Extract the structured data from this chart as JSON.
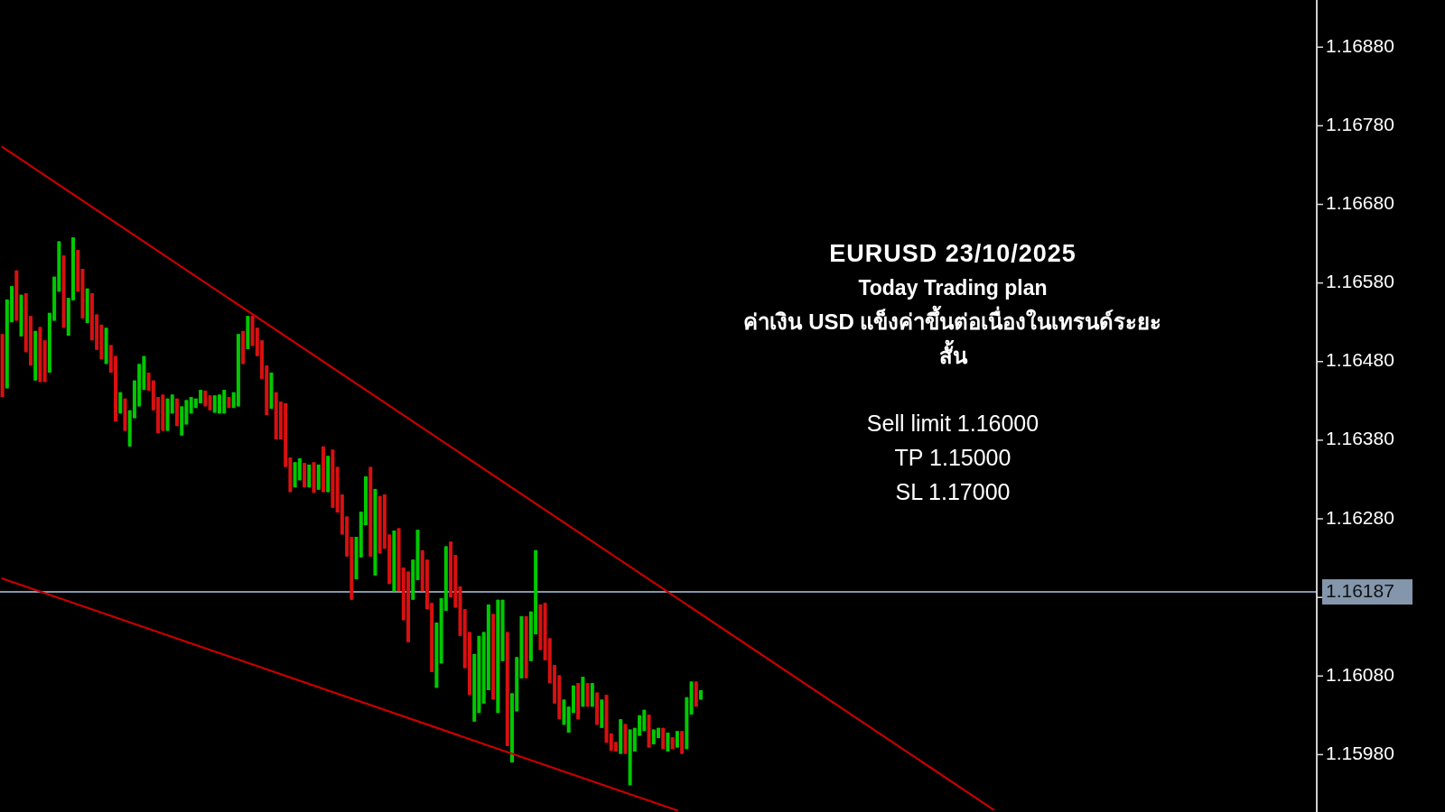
{
  "chart_data": {
    "type": "candlestick",
    "title": "EURUSD 23/10/2025",
    "subtitle": "Today Trading plan",
    "annotations": [
      "ค่าเงิน USD แข็งค่าขึ้นต่อเนื่องในเทรนด์ระยะสั้น",
      "Sell limit 1.16000",
      "TP 1.15000",
      "SL 1.17000"
    ],
    "colors": [
      "#d81010",
      "#00c800",
      "#00c800",
      "#d81010",
      "#00c800",
      "#d81010",
      "#d81010",
      "#00c800",
      "#d81010",
      "#d81010",
      "#00c800",
      "#00c800",
      "#00c800",
      "#d81010",
      "#00c800",
      "#00c800",
      "#d81010",
      "#d81010",
      "#00c800",
      "#d81010",
      "#d81010",
      "#d81010",
      "#00c800",
      "#d81010",
      "#d81010",
      "#00c800",
      "#d81010",
      "#00c800",
      "#00c800",
      "#00c800",
      "#00c800",
      "#d81010",
      "#d81010",
      "#d81010",
      "#d81010",
      "#00c800",
      "#00c800",
      "#d81010",
      "#00c800",
      "#00c800",
      "#00c800",
      "#00c800",
      "#00c800",
      "#d81010",
      "#d81010",
      "#00c800",
      "#00c800",
      "#00c800",
      "#d81010",
      "#00c800",
      "#00c800",
      "#d81010",
      "#00c800",
      "#d81010",
      "#d81010",
      "#d81010",
      "#d81010",
      "#00c800",
      "#d81010",
      "#d81010",
      "#d81010",
      "#d81010",
      "#00c800",
      "#00c800",
      "#d81010",
      "#00c800",
      "#d81010",
      "#00c800",
      "#d81010",
      "#00c800",
      "#d81010",
      "#d81010",
      "#d81010",
      "#d81010",
      "#d81010",
      "#00c800",
      "#00c800",
      "#00c800",
      "#d81010",
      "#00c800",
      "#d81010",
      "#d81010",
      "#d81010",
      "#00c800",
      "#d81010",
      "#d81010",
      "#d81010",
      "#00c800",
      "#00c800",
      "#d81010",
      "#d81010",
      "#d81010",
      "#00c800",
      "#00c800",
      "#00c800",
      "#d81010",
      "#d81010",
      "#d81010",
      "#d81010",
      "#d81010",
      "#00c800",
      "#00c800",
      "#00c800",
      "#00c800",
      "#d81010",
      "#00c800",
      "#00c800",
      "#d81010",
      "#00c800",
      "#00c800",
      "#00c800",
      "#d81010",
      "#00c800",
      "#00c800",
      "#d81010",
      "#d81010",
      "#d81010",
      "#d81010",
      "#d81010",
      "#00c800",
      "#00c800",
      "#00c800",
      "#d81010",
      "#00c800",
      "#d81010",
      "#00c800",
      "#d81010",
      "#00c800",
      "#d81010",
      "#d81010",
      "#d81010",
      "#00c800",
      "#d81010",
      "#00c800",
      "#00c800",
      "#00c800",
      "#00c800",
      "#d81010",
      "#00c800",
      "#00c800",
      "#d81010",
      "#00c800",
      "#d81010",
      "#00c800",
      "#d81010",
      "#00c800",
      "#00c800",
      "#d81010",
      "#00c800",
      null,
      null,
      null,
      null,
      null,
      null,
      null,
      null,
      null,
      null,
      null,
      null,
      null,
      null,
      null,
      null,
      null,
      null,
      null,
      null,
      null,
      null,
      null,
      null,
      null,
      null,
      null,
      null,
      null,
      null,
      null,
      null,
      null,
      null,
      null,
      null,
      null,
      null,
      null,
      null,
      null,
      null,
      null,
      null,
      null,
      null,
      null,
      null,
      null,
      null,
      null,
      null,
      null,
      null,
      null,
      null,
      null,
      null,
      null,
      null,
      null,
      null,
      null,
      null,
      null,
      null,
      null,
      null,
      null,
      null,
      null,
      null,
      null,
      null,
      null,
      null,
      null,
      null,
      null,
      null,
      null,
      null,
      null,
      null,
      null,
      null,
      null,
      null,
      null,
      null,
      null,
      null,
      null,
      null,
      null,
      null,
      null,
      null,
      null,
      null,
      null,
      null,
      null,
      null,
      null,
      null,
      null,
      null,
      null,
      null,
      null,
      null,
      null,
      null,
      null,
      null,
      null,
      null,
      null,
      null,
      null,
      null,
      null,
      null,
      null,
      null,
      null,
      null,
      null,
      null
    ],
    "ylim": [
      1.15907,
      1.1694
    ],
    "yticks": [
      {
        "value": 1.1598,
        "label": "1.15980"
      },
      {
        "value": 1.1608,
        "label": "1.16080"
      },
      {
        "value": 1.1618,
        "label": null
      },
      {
        "value": 1.1628,
        "label": "1.16280"
      },
      {
        "value": 1.1638,
        "label": "1.16380"
      },
      {
        "value": 1.1648,
        "label": "1.16480"
      },
      {
        "value": 1.1658,
        "label": "1.16580"
      },
      {
        "value": 1.1668,
        "label": "1.16680"
      },
      {
        "value": 1.1678,
        "label": "1.16780"
      },
      {
        "value": 1.1688,
        "label": "1.16880"
      }
    ],
    "tick_labels": "y",
    "ref_lines": [
      {
        "axis": "y",
        "value": 1.16187,
        "label": "1.16187",
        "color": "#8496ab"
      }
    ],
    "categories": [
      null,
      null,
      null,
      null,
      null,
      null,
      null,
      null,
      null,
      null,
      null,
      null,
      null,
      null,
      null,
      null,
      null,
      null,
      null,
      null,
      null,
      null,
      null,
      null,
      null,
      null,
      null,
      null,
      null,
      null,
      null,
      null,
      null,
      null,
      null,
      null,
      null,
      null,
      null,
      null,
      null,
      null,
      null,
      null,
      null,
      null,
      null,
      null,
      null,
      null,
      null,
      null,
      null,
      null,
      null,
      null,
      null,
      null,
      null,
      null,
      null,
      null,
      null,
      null,
      null,
      null,
      null,
      null,
      null,
      null,
      null,
      null,
      null,
      null,
      null,
      null,
      null,
      null,
      null,
      null,
      null,
      null,
      null,
      null,
      null,
      null,
      null,
      null,
      null,
      null,
      null,
      null,
      null,
      null,
      null,
      null,
      null,
      null,
      null,
      null,
      null,
      null,
      null,
      null,
      null,
      null,
      null,
      null,
      null,
      null,
      null,
      null,
      null,
      null,
      null,
      null,
      null,
      null,
      null,
      null,
      null,
      null,
      null,
      null,
      null,
      null,
      null,
      null,
      null,
      null,
      null,
      null,
      null,
      null,
      null,
      null,
      null,
      null,
      null,
      null,
      null,
      null,
      null,
      null,
      null,
      null,
      null,
      null,
      null,
      null,
      null,
      null,
      null,
      null,
      null,
      null,
      null,
      null,
      null,
      null,
      null,
      null,
      null,
      null,
      null,
      null,
      null,
      null,
      null,
      null,
      null,
      null,
      null,
      null,
      null,
      null,
      null,
      null,
      null,
      null,
      null,
      null,
      null,
      null,
      null,
      null,
      null,
      null,
      null,
      null,
      null,
      null,
      null,
      null,
      null,
      null,
      null,
      null,
      null,
      null,
      null,
      null,
      null,
      null,
      null,
      null,
      null,
      null,
      null,
      null,
      null,
      null,
      null,
      null,
      null,
      null,
      null,
      null,
      null,
      null,
      null,
      null,
      null,
      null,
      null,
      null,
      null,
      null,
      null,
      null,
      null,
      null,
      null,
      null,
      null,
      null,
      null,
      null,
      null,
      null,
      null,
      null,
      null,
      null,
      null,
      null,
      null,
      null,
      null,
      null,
      null,
      null,
      null,
      null,
      null,
      null,
      null,
      null,
      null,
      null,
      null,
      null,
      null,
      null,
      null,
      null,
      null,
      null,
      null,
      null,
      null,
      null,
      null,
      null,
      null,
      null,
      null,
      null,
      null
    ],
    "ohlc": [
      [
        1.16515,
        1.16515,
        1.16435,
        1.16435
      ],
      [
        1.16446,
        1.16559,
        1.16446,
        1.16559
      ],
      [
        1.1653,
        1.16576,
        1.1653,
        1.16576
      ],
      [
        1.16596,
        1.16596,
        1.16532,
        1.16532
      ],
      [
        1.16512,
        1.16565,
        1.16512,
        1.16565
      ],
      [
        1.16567,
        1.16567,
        1.16492,
        1.16492
      ],
      [
        1.16538,
        1.16538,
        1.16475,
        1.16475
      ],
      [
        1.16456,
        1.16519,
        1.16456,
        1.16519
      ],
      [
        1.16524,
        1.16524,
        1.16454,
        1.16454
      ],
      [
        1.16507,
        1.16507,
        1.16454,
        1.16454
      ],
      [
        1.16466,
        1.16542,
        1.16466,
        1.16542
      ],
      [
        1.16532,
        1.16588,
        1.16532,
        1.16588
      ],
      [
        1.16569,
        1.16633,
        1.16569,
        1.16633
      ],
      [
        1.16615,
        1.16615,
        1.16523,
        1.16523
      ],
      [
        1.16513,
        1.16561,
        1.16513,
        1.16561
      ],
      [
        1.16558,
        1.16638,
        1.16558,
        1.16638
      ],
      [
        1.16622,
        1.16622,
        1.16569,
        1.16569
      ],
      [
        1.16598,
        1.16598,
        1.16535,
        1.16535
      ],
      [
        1.16529,
        1.16573,
        1.16529,
        1.16573
      ],
      [
        1.16567,
        1.16567,
        1.16507,
        1.16507
      ],
      [
        1.1654,
        1.1654,
        1.16495,
        1.16495
      ],
      [
        1.16527,
        1.16527,
        1.16483,
        1.16483
      ],
      [
        1.16477,
        1.16523,
        1.16477,
        1.16523
      ],
      [
        1.16501,
        1.16501,
        1.16466,
        1.16466
      ],
      [
        1.16487,
        1.16487,
        1.16404,
        1.16404
      ],
      [
        1.16414,
        1.16441,
        1.16414,
        1.16441
      ],
      [
        1.16433,
        1.16433,
        1.16392,
        1.16392
      ],
      [
        1.16372,
        1.16418,
        1.16372,
        1.16418
      ],
      [
        1.16408,
        1.16456,
        1.16408,
        1.16456
      ],
      [
        1.16423,
        1.16477,
        1.16423,
        1.16477
      ],
      [
        1.16444,
        1.16487,
        1.16444,
        1.16487
      ],
      [
        1.16466,
        1.16466,
        1.16443,
        1.16443
      ],
      [
        1.16456,
        1.16456,
        1.16418,
        1.16418
      ],
      [
        1.16435,
        1.16435,
        1.16389,
        1.16389
      ],
      [
        1.16438,
        1.16438,
        1.16392,
        1.16392
      ],
      [
        1.16392,
        1.16433,
        1.16392,
        1.16433
      ],
      [
        1.16414,
        1.16438,
        1.16414,
        1.16438
      ],
      [
        1.16433,
        1.16433,
        1.16398,
        1.16398
      ],
      [
        1.16386,
        1.16423,
        1.16386,
        1.16423
      ],
      [
        1.164,
        1.16431,
        1.164,
        1.16431
      ],
      [
        1.16414,
        1.16435,
        1.16414,
        1.16435
      ],
      [
        1.16421,
        1.16433,
        1.16421,
        1.16433
      ],
      [
        1.16427,
        1.16444,
        1.16427,
        1.16444
      ],
      [
        1.16443,
        1.16443,
        1.16423,
        1.16423
      ],
      [
        1.16437,
        1.16437,
        1.16418,
        1.16418
      ],
      [
        1.16415,
        1.16437,
        1.16415,
        1.16437
      ],
      [
        1.16414,
        1.16438,
        1.16414,
        1.16438
      ],
      [
        1.16414,
        1.16444,
        1.16414,
        1.16444
      ],
      [
        1.16435,
        1.16435,
        1.16421,
        1.16421
      ],
      [
        1.16421,
        1.16441,
        1.16421,
        1.16441
      ],
      [
        1.16423,
        1.16515,
        1.16423,
        1.16515
      ],
      [
        1.16519,
        1.16519,
        1.16477,
        1.16477
      ],
      [
        1.16496,
        1.16538,
        1.16496,
        1.16538
      ],
      [
        1.16538,
        1.16538,
        1.165,
        1.165
      ],
      [
        1.16523,
        1.16523,
        1.16487,
        1.16487
      ],
      [
        1.16507,
        1.16507,
        1.16458,
        1.16458
      ],
      [
        1.16475,
        1.16475,
        1.16412,
        1.16412
      ],
      [
        1.1642,
        1.16466,
        1.1642,
        1.16466
      ],
      [
        1.16441,
        1.16441,
        1.16381,
        1.16381
      ],
      [
        1.16429,
        1.16429,
        1.16381,
        1.16381
      ],
      [
        1.16427,
        1.16427,
        1.16346,
        1.16346
      ],
      [
        1.16358,
        1.16358,
        1.16314,
        1.16314
      ],
      [
        1.1632,
        1.16352,
        1.1632,
        1.16352
      ],
      [
        1.16329,
        1.16357,
        1.16329,
        1.16357
      ],
      [
        1.16351,
        1.16351,
        1.1632,
        1.1632
      ],
      [
        1.1632,
        1.16349,
        1.1632,
        1.16349
      ],
      [
        1.16352,
        1.16352,
        1.16313,
        1.16313
      ],
      [
        1.16317,
        1.16349,
        1.16317,
        1.16349
      ],
      [
        1.16372,
        1.16372,
        1.16314,
        1.16314
      ],
      [
        1.16314,
        1.1636,
        1.16314,
        1.1636
      ],
      [
        1.16368,
        1.16368,
        1.16294,
        1.16294
      ],
      [
        1.16346,
        1.16346,
        1.16288,
        1.16288
      ],
      [
        1.16311,
        1.16311,
        1.1626,
        1.1626
      ],
      [
        1.16283,
        1.16283,
        1.16232,
        1.16232
      ],
      [
        1.16257,
        1.16257,
        1.16177,
        1.16177
      ],
      [
        1.16203,
        1.16257,
        1.16203,
        1.16257
      ],
      [
        1.16231,
        1.16289,
        1.16231,
        1.16289
      ],
      [
        1.16272,
        1.16334,
        1.16272,
        1.16334
      ],
      [
        1.16346,
        1.16346,
        1.16232,
        1.16232
      ],
      [
        1.16208,
        1.16318,
        1.16208,
        1.16318
      ],
      [
        1.16309,
        1.16309,
        1.16236,
        1.16236
      ],
      [
        1.16311,
        1.16311,
        1.16242,
        1.16242
      ],
      [
        1.1626,
        1.1626,
        1.16197,
        1.16197
      ],
      [
        1.16188,
        1.16265,
        1.16188,
        1.16265
      ],
      [
        1.16268,
        1.16268,
        1.16188,
        1.16188
      ],
      [
        1.16218,
        1.16218,
        1.16151,
        1.16151
      ],
      [
        1.16213,
        1.16213,
        1.16123,
        1.16123
      ],
      [
        1.16177,
        1.16228,
        1.16177,
        1.16228
      ],
      [
        1.16202,
        1.16266,
        1.16202,
        1.16266
      ],
      [
        1.1624,
        1.1624,
        1.16188,
        1.16188
      ],
      [
        1.16228,
        1.16228,
        1.16165,
        1.16165
      ],
      [
        1.16173,
        1.16173,
        1.16085,
        1.16085
      ],
      [
        1.16065,
        1.16148,
        1.16065,
        1.16148
      ],
      [
        1.16096,
        1.16179,
        1.16096,
        1.16179
      ],
      [
        1.16163,
        1.16245,
        1.16163,
        1.16245
      ],
      [
        1.16251,
        1.16251,
        1.1618,
        1.1618
      ],
      [
        1.16234,
        1.16234,
        1.16167,
        1.16167
      ],
      [
        1.16194,
        1.16194,
        1.16131,
        1.16131
      ],
      [
        1.16165,
        1.16165,
        1.1609,
        1.1609
      ],
      [
        1.16136,
        1.16136,
        1.16056,
        1.16056
      ],
      [
        1.16022,
        1.16108,
        1.16022,
        1.16108
      ],
      [
        1.16033,
        1.16131,
        1.16033,
        1.16131
      ],
      [
        1.16045,
        1.16136,
        1.16045,
        1.16136
      ],
      [
        1.16062,
        1.16171,
        1.16062,
        1.16171
      ],
      [
        1.16159,
        1.16159,
        1.1605,
        1.1605
      ],
      [
        1.16033,
        1.16177,
        1.16033,
        1.16177
      ],
      [
        1.16099,
        1.16177,
        1.16099,
        1.16177
      ],
      [
        1.16136,
        1.16136,
        1.15991,
        1.15991
      ],
      [
        1.1597,
        1.16058,
        1.1597,
        1.16058
      ],
      [
        1.16035,
        1.16104,
        1.16035,
        1.16104
      ],
      [
        1.16077,
        1.16156,
        1.16077,
        1.16156
      ],
      [
        1.16156,
        1.16156,
        1.16077,
        1.16077
      ],
      [
        1.16099,
        1.16162,
        1.16099,
        1.16162
      ],
      [
        1.16133,
        1.1624,
        1.16133,
        1.1624
      ],
      [
        1.16171,
        1.16171,
        1.16113,
        1.16113
      ],
      [
        1.16173,
        1.16173,
        1.161,
        1.161
      ],
      [
        1.16128,
        1.16128,
        1.16071,
        1.16071
      ],
      [
        1.16094,
        1.16094,
        1.16045,
        1.16045
      ],
      [
        1.16081,
        1.16081,
        1.16025,
        1.16025
      ],
      [
        1.16018,
        1.1605,
        1.16018,
        1.1605
      ],
      [
        1.16008,
        1.16041,
        1.16008,
        1.16041
      ],
      [
        1.16033,
        1.16068,
        1.16033,
        1.16068
      ],
      [
        1.16071,
        1.16071,
        1.16025,
        1.16025
      ],
      [
        1.16041,
        1.16079,
        1.16041,
        1.16079
      ],
      [
        1.16071,
        1.16071,
        1.16041,
        1.16041
      ],
      [
        1.16041,
        1.16071,
        1.16041,
        1.16071
      ],
      [
        1.16059,
        1.16059,
        1.16018,
        1.16018
      ],
      [
        1.16014,
        1.1605,
        1.16014,
        1.1605
      ],
      [
        1.16056,
        1.16056,
        1.15995,
        1.15995
      ],
      [
        1.16007,
        1.16007,
        1.15985,
        1.15985
      ],
      [
        1.15996,
        1.15996,
        1.15984,
        1.15984
      ],
      [
        1.15981,
        1.16025,
        1.15981,
        1.16025
      ],
      [
        1.16019,
        1.16019,
        1.15981,
        1.15981
      ],
      [
        1.15941,
        1.16012,
        1.15941,
        1.16012
      ],
      [
        1.15984,
        1.16014,
        1.15984,
        1.16014
      ],
      [
        1.16004,
        1.1603,
        1.16004,
        1.1603
      ],
      [
        1.1601,
        1.16037,
        1.1601,
        1.16037
      ],
      [
        1.16031,
        1.16031,
        1.15989,
        1.15989
      ],
      [
        1.15993,
        1.16012,
        1.15993,
        1.16012
      ],
      [
        1.16001,
        1.16014,
        1.16001,
        1.16014
      ],
      [
        1.16014,
        1.16014,
        1.15987,
        1.15987
      ],
      [
        1.15984,
        1.16008,
        1.15984,
        1.16008
      ],
      [
        1.16002,
        1.16002,
        1.15987,
        1.15987
      ],
      [
        1.15989,
        1.1601,
        1.15989,
        1.1601
      ],
      [
        1.1601,
        1.1601,
        1.15981,
        1.15981
      ],
      [
        1.15987,
        1.16053,
        1.15987,
        1.16053
      ],
      [
        1.16031,
        1.16073,
        1.16031,
        1.16073
      ],
      [
        1.16073,
        1.16073,
        1.16041,
        1.16041
      ],
      [
        1.1605,
        1.16062,
        1.1605,
        1.16062
      ],
      null,
      null,
      null,
      null,
      null,
      null,
      null,
      null,
      null,
      null,
      null,
      null,
      null,
      null,
      null,
      null,
      null,
      null,
      null,
      null,
      null,
      null,
      null,
      null,
      null,
      null,
      null,
      null,
      null,
      null,
      null,
      null,
      null,
      null,
      null,
      null,
      null,
      null,
      null,
      null,
      null,
      null,
      null,
      null,
      null,
      null,
      null,
      null,
      null,
      null,
      null,
      null,
      null,
      null,
      null,
      null,
      null,
      null,
      null,
      null,
      null,
      null,
      null,
      null,
      null,
      null,
      null,
      null,
      null,
      null,
      null,
      null,
      null,
      null,
      null,
      null,
      null,
      null,
      null,
      null,
      null,
      null,
      null,
      null,
      null,
      null,
      null,
      null,
      null,
      null,
      null,
      null,
      null,
      null,
      null,
      null,
      null,
      null,
      null,
      null,
      null,
      null,
      null,
      null,
      null,
      null,
      null,
      null,
      null,
      null,
      null,
      null,
      null,
      null,
      null,
      null,
      null,
      null,
      null,
      null,
      null,
      null,
      null,
      null,
      null,
      null,
      null,
      null,
      null,
      null
    ],
    "series": [
      {
        "type": "line",
        "color": "#c80000",
        "values": [
          1.16753,
          null,
          null,
          null,
          null,
          null,
          null,
          null,
          null,
          null,
          null,
          null,
          null,
          null,
          null,
          null,
          null,
          null,
          null,
          null,
          null,
          null,
          null,
          null,
          null,
          null,
          null,
          null,
          null,
          null,
          null,
          null,
          null,
          null,
          null,
          null,
          null,
          null,
          null,
          null,
          null,
          null,
          null,
          null,
          null,
          null,
          null,
          null,
          null,
          null,
          null,
          null,
          null,
          null,
          null,
          null,
          null,
          null,
          null,
          null,
          null,
          null,
          null,
          null,
          null,
          null,
          null,
          null,
          null,
          null,
          null,
          null,
          null,
          null,
          null,
          null,
          null,
          null,
          null,
          null,
          null,
          null,
          null,
          null,
          null,
          null,
          null,
          null,
          null,
          null,
          null,
          null,
          null,
          null,
          null,
          null,
          null,
          null,
          null,
          null,
          null,
          null,
          null,
          null,
          null,
          null,
          null,
          null,
          null,
          null,
          null,
          null,
          null,
          null,
          null,
          null,
          null,
          null,
          null,
          null,
          null,
          null,
          null,
          null,
          null,
          null,
          null,
          null,
          null,
          null,
          null,
          null,
          null,
          null,
          null,
          null,
          null,
          null,
          null,
          null,
          null,
          null,
          null,
          null,
          null,
          null,
          null,
          null,
          null,
          null,
          null,
          null,
          null,
          null,
          null,
          null,
          null,
          null,
          null,
          null,
          null,
          null,
          null,
          null,
          null,
          null,
          null,
          null,
          null,
          null,
          null,
          null,
          null,
          null,
          null,
          null,
          null,
          null,
          null,
          null,
          null,
          null,
          null,
          null,
          null,
          null,
          null,
          null,
          null,
          null,
          null,
          null,
          null,
          null,
          null,
          null,
          null,
          null,
          null,
          null,
          null,
          null,
          null,
          null,
          null,
          null,
          null,
          null,
          null,
          null,
          1.1591,
          null,
          null,
          null,
          null,
          null,
          null,
          null,
          null,
          null,
          null,
          null,
          null,
          null,
          null,
          null,
          null,
          null,
          null,
          null,
          null,
          null,
          null,
          null,
          null,
          null,
          null,
          null,
          null,
          null,
          null,
          null,
          null,
          null,
          null,
          null,
          null,
          null,
          null,
          null,
          null,
          null,
          null,
          null,
          null,
          null,
          null,
          null,
          null,
          null,
          null,
          null,
          null,
          null,
          null,
          null,
          null,
          null,
          null,
          null,
          null,
          null,
          null,
          null,
          null,
          null,
          null,
          null,
          null
        ]
      },
      {
        "type": "line",
        "color": "#c80000",
        "values": [
          1.16204,
          null,
          null,
          null,
          null,
          null,
          null,
          null,
          null,
          null,
          null,
          null,
          null,
          null,
          null,
          null,
          null,
          null,
          null,
          null,
          null,
          null,
          null,
          null,
          null,
          null,
          null,
          null,
          null,
          null,
          null,
          null,
          null,
          null,
          null,
          null,
          null,
          null,
          null,
          null,
          null,
          null,
          null,
          null,
          null,
          null,
          null,
          null,
          null,
          null,
          null,
          null,
          null,
          null,
          null,
          null,
          null,
          null,
          null,
          null,
          null,
          null,
          null,
          null,
          null,
          null,
          null,
          null,
          null,
          null,
          null,
          null,
          null,
          null,
          null,
          null,
          null,
          null,
          null,
          null,
          null,
          null,
          null,
          null,
          null,
          null,
          null,
          null,
          null,
          null,
          null,
          null,
          null,
          null,
          null,
          null,
          null,
          null,
          null,
          null,
          null,
          null,
          null,
          null,
          null,
          null,
          null,
          null,
          null,
          null,
          null,
          null,
          null,
          null,
          null,
          null,
          null,
          null,
          null,
          null,
          null,
          null,
          null,
          null,
          null,
          null,
          null,
          null,
          null,
          null,
          null,
          null,
          null,
          null,
          null,
          null,
          null,
          null,
          null,
          null,
          null,
          null,
          null,
          1.15909,
          null,
          null,
          null,
          null,
          null,
          null,
          null,
          null,
          null,
          null,
          null,
          null,
          null,
          null,
          null,
          null,
          null,
          null,
          null,
          null,
          null,
          null,
          null,
          null,
          null,
          null,
          null,
          null,
          null,
          null,
          null,
          null,
          null,
          null,
          null,
          null,
          null,
          null,
          null,
          null,
          null,
          null,
          null,
          null,
          null,
          null,
          null,
          null,
          null,
          null,
          null,
          null,
          null,
          null,
          null,
          null,
          null,
          null,
          null,
          null,
          null,
          null,
          null,
          null,
          null,
          null,
          null,
          null,
          null,
          null,
          null,
          null,
          null,
          null,
          null,
          null,
          null,
          null,
          null,
          null,
          null,
          null,
          null,
          null,
          null,
          null,
          null,
          null,
          null,
          null,
          null,
          null,
          null,
          null,
          null,
          null,
          null,
          null,
          null,
          null,
          null,
          null,
          null,
          null,
          null,
          null,
          null,
          null,
          null,
          null,
          null,
          null,
          null,
          null,
          null,
          null,
          null,
          null,
          null,
          null,
          null,
          null,
          null,
          null,
          null,
          null,
          null,
          null,
          null,
          null,
          null,
          null,
          null,
          null,
          null
        ]
      }
    ]
  }
}
